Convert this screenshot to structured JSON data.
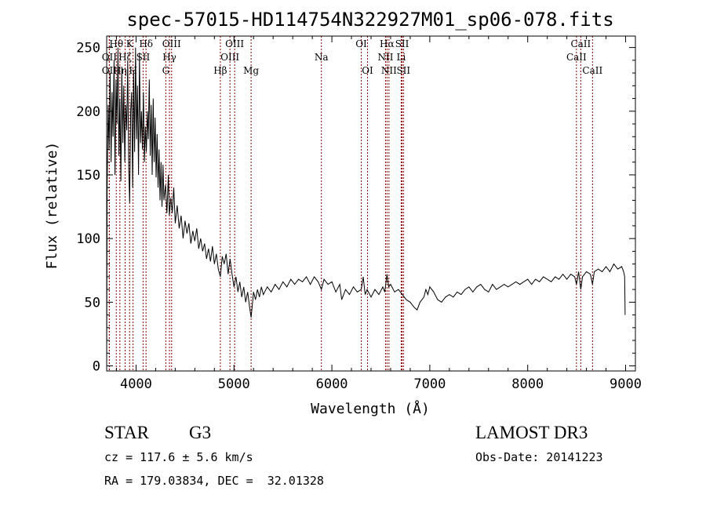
{
  "chart_data": {
    "type": "line",
    "title": "spec-57015-HD114754N322927M01_sp06-078.fits",
    "xlabel": "Wavelength (Å)",
    "ylabel": "Flux (relative)",
    "xlim": [
      3700,
      9100
    ],
    "ylim": [
      -4,
      259
    ],
    "xticks": [
      4000,
      5000,
      6000,
      7000,
      8000,
      9000
    ],
    "yticks": [
      0,
      50,
      100,
      150,
      200,
      250
    ],
    "xtick_labels": [
      "4000",
      "5000",
      "6000",
      "7000",
      "8000",
      "9000"
    ],
    "ytick_labels": [
      "0",
      "50",
      "100",
      "150",
      "200",
      "250"
    ],
    "grid": false,
    "series": [
      {
        "points": [
          [
            3700,
            0
          ],
          [
            3705,
            140
          ],
          [
            3715,
            205
          ],
          [
            3725,
            170
          ],
          [
            3735,
            230
          ],
          [
            3745,
            160
          ],
          [
            3755,
            215
          ],
          [
            3765,
            180
          ],
          [
            3775,
            240
          ],
          [
            3785,
            150
          ],
          [
            3795,
            225
          ],
          [
            3805,
            190
          ],
          [
            3815,
            250
          ],
          [
            3825,
            165
          ],
          [
            3835,
            210
          ],
          [
            3845,
            145
          ],
          [
            3855,
            235
          ],
          [
            3865,
            175
          ],
          [
            3875,
            220
          ],
          [
            3885,
            160
          ],
          [
            3895,
            205
          ],
          [
            3905,
            185
          ],
          [
            3915,
            240
          ],
          [
            3925,
            155
          ],
          [
            3935,
            128
          ],
          [
            3945,
            200
          ],
          [
            3955,
            215
          ],
          [
            3965,
            140
          ],
          [
            3975,
            232
          ],
          [
            3985,
            168
          ],
          [
            3995,
            250
          ],
          [
            4005,
            178
          ],
          [
            4015,
            220
          ],
          [
            4025,
            150
          ],
          [
            4035,
            246
          ],
          [
            4045,
            175
          ],
          [
            4055,
            200
          ],
          [
            4065,
            170
          ],
          [
            4075,
            215
          ],
          [
            4085,
            160
          ],
          [
            4095,
            188
          ],
          [
            4105,
            168
          ],
          [
            4115,
            200
          ],
          [
            4125,
            178
          ],
          [
            4135,
            225
          ],
          [
            4145,
            165
          ],
          [
            4155,
            205
          ],
          [
            4165,
            150
          ],
          [
            4175,
            210
          ],
          [
            4185,
            160
          ],
          [
            4195,
            195
          ],
          [
            4205,
            148
          ],
          [
            4215,
            182
          ],
          [
            4225,
            140
          ],
          [
            4235,
            170
          ],
          [
            4245,
            130
          ],
          [
            4255,
            160
          ],
          [
            4265,
            125
          ],
          [
            4275,
            158
          ],
          [
            4285,
            130
          ],
          [
            4300,
            142
          ],
          [
            4315,
            120
          ],
          [
            4330,
            150
          ],
          [
            4340,
            118
          ],
          [
            4355,
            132
          ],
          [
            4370,
            120
          ],
          [
            4385,
            140
          ],
          [
            4400,
            112
          ],
          [
            4420,
            126
          ],
          [
            4440,
            108
          ],
          [
            4460,
            118
          ],
          [
            4480,
            100
          ],
          [
            4500,
            114
          ],
          [
            4520,
            104
          ],
          [
            4540,
            112
          ],
          [
            4560,
            96
          ],
          [
            4580,
            106
          ],
          [
            4600,
            98
          ],
          [
            4620,
            108
          ],
          [
            4640,
            92
          ],
          [
            4660,
            100
          ],
          [
            4680,
            90
          ],
          [
            4700,
            96
          ],
          [
            4720,
            84
          ],
          [
            4740,
            92
          ],
          [
            4760,
            82
          ],
          [
            4780,
            94
          ],
          [
            4800,
            80
          ],
          [
            4820,
            88
          ],
          [
            4840,
            76
          ],
          [
            4861,
            70
          ],
          [
            4880,
            86
          ],
          [
            4900,
            80
          ],
          [
            4920,
            88
          ],
          [
            4940,
            72
          ],
          [
            4960,
            84
          ],
          [
            4980,
            72
          ],
          [
            5000,
            62
          ],
          [
            5020,
            70
          ],
          [
            5040,
            58
          ],
          [
            5060,
            66
          ],
          [
            5080,
            54
          ],
          [
            5100,
            62
          ],
          [
            5120,
            50
          ],
          [
            5140,
            58
          ],
          [
            5160,
            46
          ],
          [
            5175,
            38
          ],
          [
            5190,
            50
          ],
          [
            5200,
            58
          ],
          [
            5220,
            52
          ],
          [
            5240,
            60
          ],
          [
            5260,
            54
          ],
          [
            5280,
            62
          ],
          [
            5300,
            56
          ],
          [
            5340,
            62
          ],
          [
            5380,
            58
          ],
          [
            5420,
            64
          ],
          [
            5460,
            60
          ],
          [
            5500,
            66
          ],
          [
            5540,
            62
          ],
          [
            5580,
            68
          ],
          [
            5620,
            64
          ],
          [
            5660,
            68
          ],
          [
            5700,
            66
          ],
          [
            5740,
            70
          ],
          [
            5780,
            64
          ],
          [
            5820,
            70
          ],
          [
            5860,
            66
          ],
          [
            5893,
            60
          ],
          [
            5920,
            68
          ],
          [
            5960,
            64
          ],
          [
            6000,
            66
          ],
          [
            6040,
            58
          ],
          [
            6080,
            64
          ],
          [
            6100,
            52
          ],
          [
            6140,
            60
          ],
          [
            6180,
            56
          ],
          [
            6220,
            62
          ],
          [
            6260,
            58
          ],
          [
            6300,
            60
          ],
          [
            6320,
            70
          ],
          [
            6340,
            56
          ],
          [
            6360,
            60
          ],
          [
            6400,
            54
          ],
          [
            6440,
            60
          ],
          [
            6480,
            56
          ],
          [
            6520,
            62
          ],
          [
            6540,
            58
          ],
          [
            6563,
            72
          ],
          [
            6580,
            62
          ],
          [
            6600,
            64
          ],
          [
            6640,
            58
          ],
          [
            6680,
            60
          ],
          [
            6720,
            56
          ],
          [
            6760,
            52
          ],
          [
            6800,
            50
          ],
          [
            6840,
            46
          ],
          [
            6870,
            44
          ],
          [
            6900,
            50
          ],
          [
            6940,
            54
          ],
          [
            6960,
            60
          ],
          [
            6980,
            56
          ],
          [
            7000,
            62
          ],
          [
            7040,
            58
          ],
          [
            7080,
            52
          ],
          [
            7120,
            50
          ],
          [
            7160,
            54
          ],
          [
            7200,
            56
          ],
          [
            7240,
            54
          ],
          [
            7280,
            58
          ],
          [
            7320,
            56
          ],
          [
            7360,
            60
          ],
          [
            7400,
            62
          ],
          [
            7440,
            58
          ],
          [
            7480,
            62
          ],
          [
            7520,
            64
          ],
          [
            7560,
            60
          ],
          [
            7600,
            58
          ],
          [
            7640,
            64
          ],
          [
            7680,
            60
          ],
          [
            7720,
            62
          ],
          [
            7760,
            64
          ],
          [
            7800,
            62
          ],
          [
            7840,
            64
          ],
          [
            7880,
            66
          ],
          [
            7920,
            64
          ],
          [
            7960,
            66
          ],
          [
            8000,
            68
          ],
          [
            8040,
            64
          ],
          [
            8080,
            68
          ],
          [
            8120,
            66
          ],
          [
            8160,
            70
          ],
          [
            8200,
            68
          ],
          [
            8240,
            66
          ],
          [
            8280,
            70
          ],
          [
            8320,
            68
          ],
          [
            8360,
            72
          ],
          [
            8400,
            68
          ],
          [
            8440,
            72
          ],
          [
            8480,
            70
          ],
          [
            8498,
            64
          ],
          [
            8520,
            74
          ],
          [
            8542,
            60
          ],
          [
            8560,
            70
          ],
          [
            8600,
            74
          ],
          [
            8640,
            72
          ],
          [
            8662,
            64
          ],
          [
            8680,
            74
          ],
          [
            8720,
            76
          ],
          [
            8760,
            74
          ],
          [
            8800,
            78
          ],
          [
            8840,
            74
          ],
          [
            8880,
            80
          ],
          [
            8920,
            76
          ],
          [
            8960,
            78
          ],
          [
            8980,
            74
          ],
          [
            8990,
            70
          ],
          [
            8995,
            40
          ]
        ]
      }
    ],
    "lines": [
      {
        "label": "OII",
        "x": 3727,
        "row": 2
      },
      {
        "label": "OII",
        "x": 3727,
        "row": 1
      },
      {
        "label": "Hθ",
        "x": 3798,
        "row": 0
      },
      {
        "label": "Hη",
        "x": 3835,
        "row": 2
      },
      {
        "label": "K",
        "x": 3934,
        "row": 0
      },
      {
        "label": "H",
        "x": 3969,
        "row": 2
      },
      {
        "label": "Hζ",
        "x": 3889,
        "row": 1
      },
      {
        "label": "Hδ",
        "x": 4102,
        "row": 0
      },
      {
        "label": "SII",
        "x": 4072,
        "row": 1
      },
      {
        "label": "OIII",
        "x": 4363,
        "row": 0
      },
      {
        "label": "Hγ",
        "x": 4341,
        "row": 1
      },
      {
        "label": "G",
        "x": 4304,
        "row": 2
      },
      {
        "label": "OIII",
        "x": 5007,
        "row": 0
      },
      {
        "label": "OIII",
        "x": 4959,
        "row": 1
      },
      {
        "label": "Hβ",
        "x": 4861,
        "row": 2
      },
      {
        "label": "Mg",
        "x": 5175,
        "row": 2
      },
      {
        "label": "Na",
        "x": 5893,
        "row": 1
      },
      {
        "label": "OI",
        "x": 6300,
        "row": 0
      },
      {
        "label": "OI",
        "x": 6364,
        "row": 2
      },
      {
        "label": "Hα",
        "x": 6563,
        "row": 0
      },
      {
        "label": "SII",
        "x": 6717,
        "row": 0
      },
      {
        "label": "NII",
        "x": 6548,
        "row": 1
      },
      {
        "label": "Li",
        "x": 6708,
        "row": 1
      },
      {
        "label": "NII",
        "x": 6583,
        "row": 2
      },
      {
        "label": "SII",
        "x": 6731,
        "row": 2
      },
      {
        "label": "CaII",
        "x": 8542,
        "row": 0
      },
      {
        "label": "CaII",
        "x": 8498,
        "row": 1
      },
      {
        "label": "CaII",
        "x": 8662,
        "row": 2
      }
    ],
    "line_color": "#8b0000"
  },
  "info": {
    "class_label": "STAR",
    "subclass": "G3",
    "redshift": "cz = 117.6 ± 5.6 km/s",
    "coords": "RA = 179.03834, DEC =  32.01328",
    "survey": "LAMOST DR3",
    "obs_date": "Obs-Date: 20141223"
  }
}
